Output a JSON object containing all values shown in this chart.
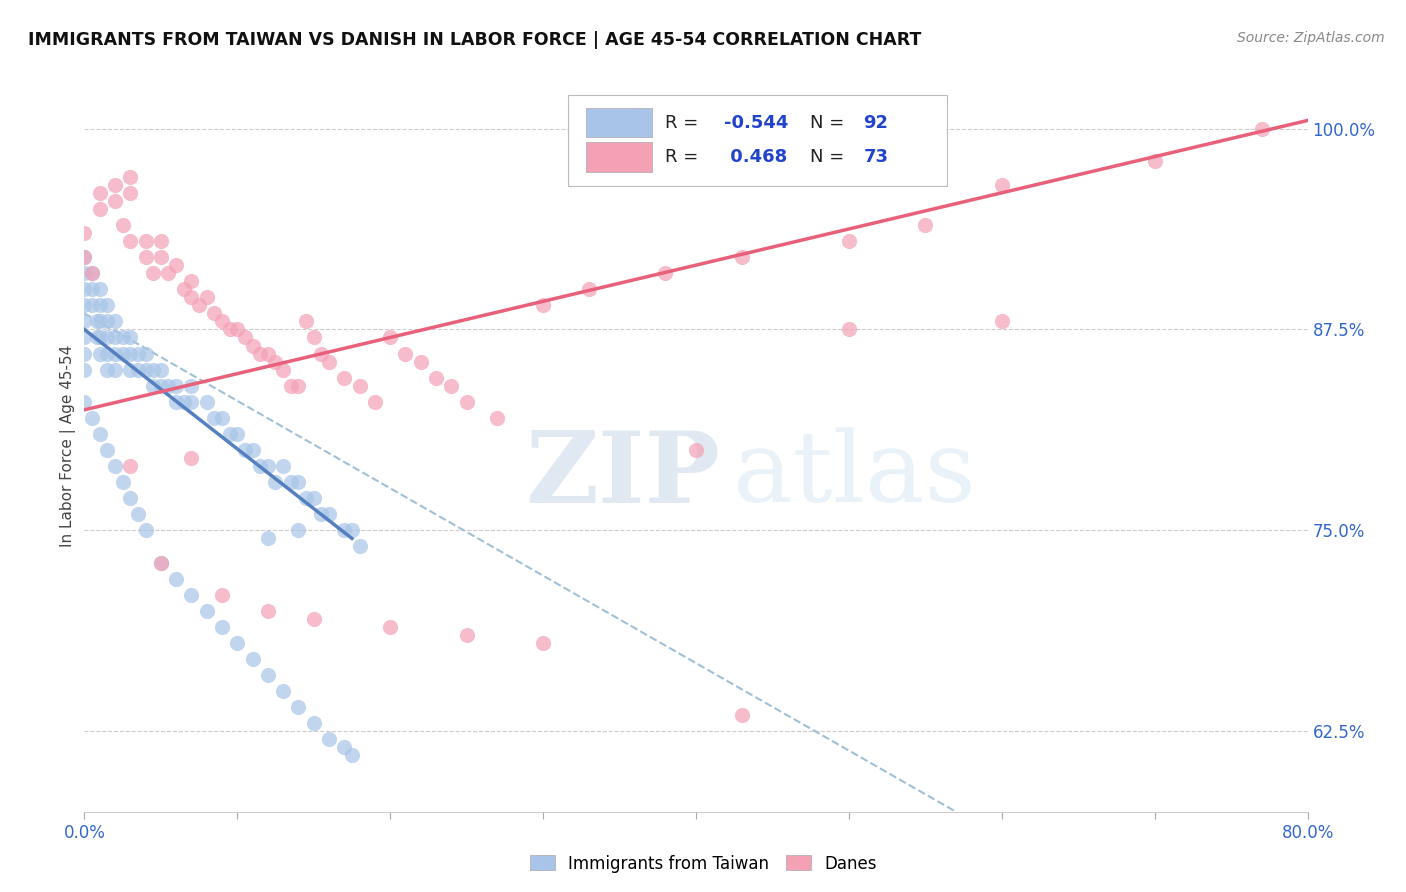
{
  "title": "IMMIGRANTS FROM TAIWAN VS DANISH IN LABOR FORCE | AGE 45-54 CORRELATION CHART",
  "source": "Source: ZipAtlas.com",
  "ylabel": "In Labor Force | Age 45-54",
  "xmin": 0.0,
  "xmax": 0.8,
  "ymin": 0.575,
  "ymax": 1.03,
  "yticks": [
    0.625,
    0.75,
    0.875,
    1.0
  ],
  "ytick_labels": [
    "62.5%",
    "75.0%",
    "87.5%",
    "100.0%"
  ],
  "legend_R_taiwan": "-0.544",
  "legend_N_taiwan": "92",
  "legend_R_danes": "0.468",
  "legend_N_danes": "73",
  "color_taiwan": "#a8c4e8",
  "color_danes": "#f4a0b5",
  "color_trendline_taiwan": "#5580c0",
  "color_trendline_danes": "#e8607a",
  "color_trendline_dashed": "#a0c0d8",
  "watermark_zip": "ZIP",
  "watermark_atlas": "atlas",
  "taiwan_x": [
    0.0,
    0.0,
    0.0,
    0.0,
    0.0,
    0.0,
    0.0,
    0.0,
    0.005,
    0.005,
    0.005,
    0.008,
    0.008,
    0.01,
    0.01,
    0.01,
    0.01,
    0.01,
    0.015,
    0.015,
    0.015,
    0.015,
    0.015,
    0.02,
    0.02,
    0.02,
    0.02,
    0.025,
    0.025,
    0.03,
    0.03,
    0.03,
    0.035,
    0.035,
    0.04,
    0.04,
    0.045,
    0.045,
    0.05,
    0.05,
    0.055,
    0.06,
    0.06,
    0.065,
    0.07,
    0.07,
    0.08,
    0.085,
    0.09,
    0.095,
    0.1,
    0.105,
    0.11,
    0.115,
    0.12,
    0.125,
    0.13,
    0.135,
    0.14,
    0.145,
    0.15,
    0.155,
    0.16,
    0.17,
    0.175,
    0.18,
    0.0,
    0.005,
    0.01,
    0.015,
    0.02,
    0.025,
    0.03,
    0.035,
    0.04,
    0.05,
    0.06,
    0.07,
    0.08,
    0.09,
    0.1,
    0.11,
    0.12,
    0.13,
    0.14,
    0.15,
    0.16,
    0.17,
    0.175,
    0.12,
    0.14
  ],
  "taiwan_y": [
    0.92,
    0.91,
    0.9,
    0.89,
    0.88,
    0.87,
    0.86,
    0.85,
    0.91,
    0.9,
    0.89,
    0.88,
    0.87,
    0.9,
    0.89,
    0.88,
    0.87,
    0.86,
    0.89,
    0.88,
    0.87,
    0.86,
    0.85,
    0.88,
    0.87,
    0.86,
    0.85,
    0.87,
    0.86,
    0.87,
    0.86,
    0.85,
    0.86,
    0.85,
    0.86,
    0.85,
    0.85,
    0.84,
    0.85,
    0.84,
    0.84,
    0.84,
    0.83,
    0.83,
    0.84,
    0.83,
    0.83,
    0.82,
    0.82,
    0.81,
    0.81,
    0.8,
    0.8,
    0.79,
    0.79,
    0.78,
    0.79,
    0.78,
    0.78,
    0.77,
    0.77,
    0.76,
    0.76,
    0.75,
    0.75,
    0.74,
    0.83,
    0.82,
    0.81,
    0.8,
    0.79,
    0.78,
    0.77,
    0.76,
    0.75,
    0.73,
    0.72,
    0.71,
    0.7,
    0.69,
    0.68,
    0.67,
    0.66,
    0.65,
    0.64,
    0.63,
    0.62,
    0.615,
    0.61,
    0.745,
    0.75
  ],
  "danes_x": [
    0.0,
    0.0,
    0.005,
    0.01,
    0.01,
    0.02,
    0.02,
    0.025,
    0.03,
    0.03,
    0.03,
    0.04,
    0.04,
    0.045,
    0.05,
    0.05,
    0.055,
    0.06,
    0.065,
    0.07,
    0.07,
    0.075,
    0.08,
    0.085,
    0.09,
    0.095,
    0.1,
    0.105,
    0.11,
    0.115,
    0.12,
    0.125,
    0.13,
    0.135,
    0.14,
    0.145,
    0.15,
    0.155,
    0.16,
    0.17,
    0.18,
    0.19,
    0.2,
    0.21,
    0.22,
    0.23,
    0.24,
    0.25,
    0.27,
    0.3,
    0.33,
    0.38,
    0.43,
    0.5,
    0.55,
    0.6,
    0.7,
    0.77,
    0.03,
    0.05,
    0.07,
    0.09,
    0.12,
    0.15,
    0.2,
    0.25,
    0.3,
    0.4,
    0.5,
    0.6,
    0.43
  ],
  "danes_y": [
    0.935,
    0.92,
    0.91,
    0.96,
    0.95,
    0.965,
    0.955,
    0.94,
    0.97,
    0.96,
    0.93,
    0.93,
    0.92,
    0.91,
    0.93,
    0.92,
    0.91,
    0.915,
    0.9,
    0.905,
    0.895,
    0.89,
    0.895,
    0.885,
    0.88,
    0.875,
    0.875,
    0.87,
    0.865,
    0.86,
    0.86,
    0.855,
    0.85,
    0.84,
    0.84,
    0.88,
    0.87,
    0.86,
    0.855,
    0.845,
    0.84,
    0.83,
    0.87,
    0.86,
    0.855,
    0.845,
    0.84,
    0.83,
    0.82,
    0.89,
    0.9,
    0.91,
    0.92,
    0.93,
    0.94,
    0.965,
    0.98,
    1.0,
    0.79,
    0.73,
    0.795,
    0.71,
    0.7,
    0.695,
    0.69,
    0.685,
    0.68,
    0.8,
    0.875,
    0.88,
    0.635
  ],
  "tw_trend_x": [
    0.0,
    0.175
  ],
  "tw_trend_y": [
    0.875,
    0.745
  ],
  "da_trend_x": [
    0.0,
    0.8
  ],
  "da_trend_y": [
    0.825,
    1.005
  ],
  "dash_trend_x": [
    0.0,
    0.57
  ],
  "dash_trend_y": [
    0.885,
    0.575
  ]
}
